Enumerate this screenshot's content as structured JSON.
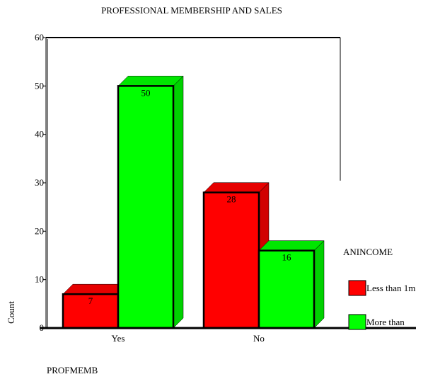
{
  "chart_data": {
    "type": "bar",
    "title": "PROFESSIONAL MEMBERSHIP AND SALES",
    "xlabel": "PROFMEMB",
    "ylabel": "Count",
    "categories": [
      "Yes",
      "No"
    ],
    "ylim": [
      0,
      60
    ],
    "yticks": [
      0,
      10,
      20,
      30,
      40,
      50,
      60
    ],
    "legend_title": "ANINCOME",
    "legend_position": "right",
    "grid": false,
    "series": [
      {
        "name": "Less than 1m",
        "color": "#ff0000",
        "values": [
          7,
          28
        ]
      },
      {
        "name": "More than",
        "color": "#00ff00",
        "values": [
          50,
          16
        ]
      }
    ]
  }
}
